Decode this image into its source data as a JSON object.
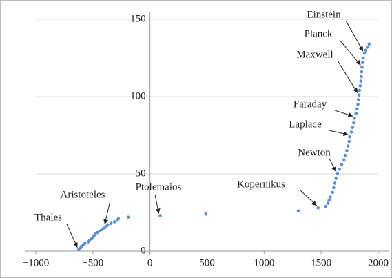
{
  "chart_data": {
    "type": "scatter",
    "x": [
      -624,
      -610,
      -600,
      -585,
      -570,
      -540,
      -530,
      -510,
      -500,
      -490,
      -480,
      -460,
      -440,
      -420,
      -400,
      -384,
      -370,
      -340,
      -310,
      -287,
      -276,
      -190,
      90,
      490,
      1300,
      1473,
      1540,
      1560,
      1570,
      1580,
      1600,
      1610,
      1620,
      1630,
      1643,
      1660,
      1680,
      1700,
      1710,
      1725,
      1735,
      1745,
      1749,
      1765,
      1775,
      1785,
      1791,
      1805,
      1815,
      1822,
      1826,
      1831,
      1836,
      1842,
      1848,
      1852,
      1855,
      1858,
      1862,
      1868,
      1879,
      1890,
      1905,
      1920
    ],
    "series": [
      {
        "color": "#5b8fd0",
        "values": [
          1,
          2,
          3,
          4,
          5,
          6,
          7,
          8,
          9,
          10,
          11,
          12,
          13,
          14,
          15,
          16,
          17,
          18,
          19,
          20,
          21,
          22,
          23,
          24,
          26,
          28,
          29,
          31,
          33,
          35,
          38,
          41,
          44,
          47,
          50,
          53,
          56,
          59,
          62,
          65,
          68,
          71,
          74,
          77,
          80,
          83,
          86,
          89,
          92,
          95,
          98,
          101,
          104,
          107,
          110,
          113,
          116,
          119,
          122,
          125,
          128,
          130,
          132,
          134
        ]
      }
    ],
    "xlim": [
      -1000,
      2000
    ],
    "xticks": [
      {
        "value": -1000,
        "label": "−1000"
      },
      {
        "value": -500,
        "label": "−500"
      },
      0,
      500,
      1000,
      1500,
      2000
    ],
    "ylim": [
      0,
      150
    ],
    "yticks": [
      0,
      50,
      100,
      150
    ],
    "grid": true,
    "annotations": [
      {
        "text": "Einstein",
        "x": 1879,
        "y": 128
      },
      {
        "text": "Planck",
        "x": 1858,
        "y": 119
      },
      {
        "text": "Maxwell",
        "x": 1831,
        "y": 101
      },
      {
        "text": "Faraday",
        "x": 1791,
        "y": 86
      },
      {
        "text": "Laplace",
        "x": 1749,
        "y": 74
      },
      {
        "text": "Newton",
        "x": 1643,
        "y": 50
      },
      {
        "text": "Kopernikus",
        "x": 1473,
        "y": 28
      },
      {
        "text": "Ptolemaios",
        "x": 90,
        "y": 23
      },
      {
        "text": "Aristoteles",
        "x": -384,
        "y": 16
      },
      {
        "text": "Thales",
        "x": -624,
        "y": 1
      }
    ]
  }
}
